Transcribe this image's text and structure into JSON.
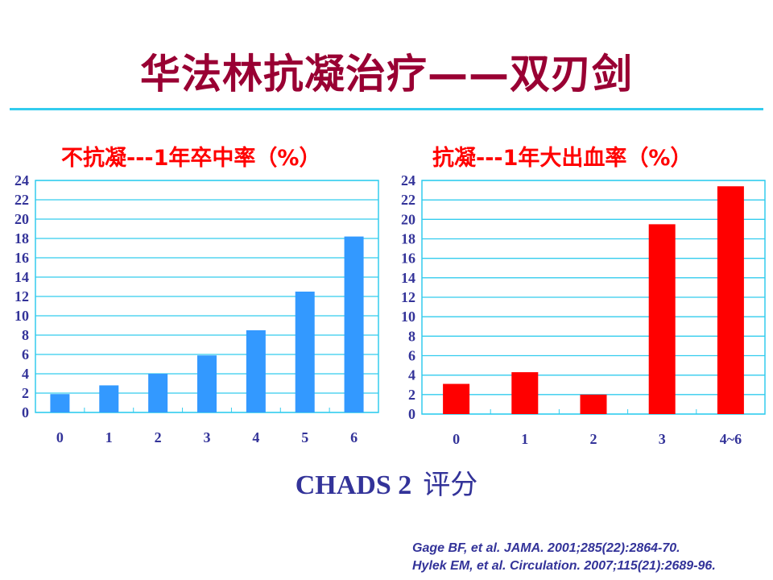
{
  "title": "华法林抗凝治疗——双刃剑",
  "x_axis_title": {
    "en": "CHADS 2",
    "zh": "评分"
  },
  "citations": [
    "Gage BF, et al. JAMA. 2001;285(22):2864-70.",
    "Hylek EM, et al. Circulation. 2007;115(21):2689-96."
  ],
  "colors": {
    "title": "#990033",
    "grid": "#33ccee",
    "axis_text": "#333399",
    "left_bars": "#3399ff",
    "right_bars": "#ff0000"
  },
  "chart_data": [
    {
      "type": "bar",
      "title": "不抗凝---1年卒中率（%）",
      "categories": [
        "0",
        "1",
        "2",
        "3",
        "4",
        "5",
        "6"
      ],
      "values": [
        1.9,
        2.8,
        4.0,
        5.9,
        8.5,
        12.5,
        18.2
      ],
      "yticks": [
        0,
        2,
        4,
        6,
        8,
        10,
        12,
        14,
        16,
        18,
        20,
        22,
        24
      ],
      "ylim": [
        0,
        24
      ],
      "xlabel": "CHADS 2 评分",
      "ylabel": "",
      "grid": true
    },
    {
      "type": "bar",
      "title": "抗凝---1年大出血率（%）",
      "categories": [
        "0",
        "1",
        "2",
        "3",
        "4~6"
      ],
      "values": [
        3.1,
        4.3,
        2.0,
        19.5,
        23.4
      ],
      "yticks": [
        0,
        2,
        4,
        6,
        8,
        10,
        12,
        14,
        16,
        18,
        20,
        22,
        24
      ],
      "ylim": [
        0,
        24
      ],
      "xlabel": "CHADS 2 评分",
      "ylabel": "",
      "grid": true
    }
  ]
}
